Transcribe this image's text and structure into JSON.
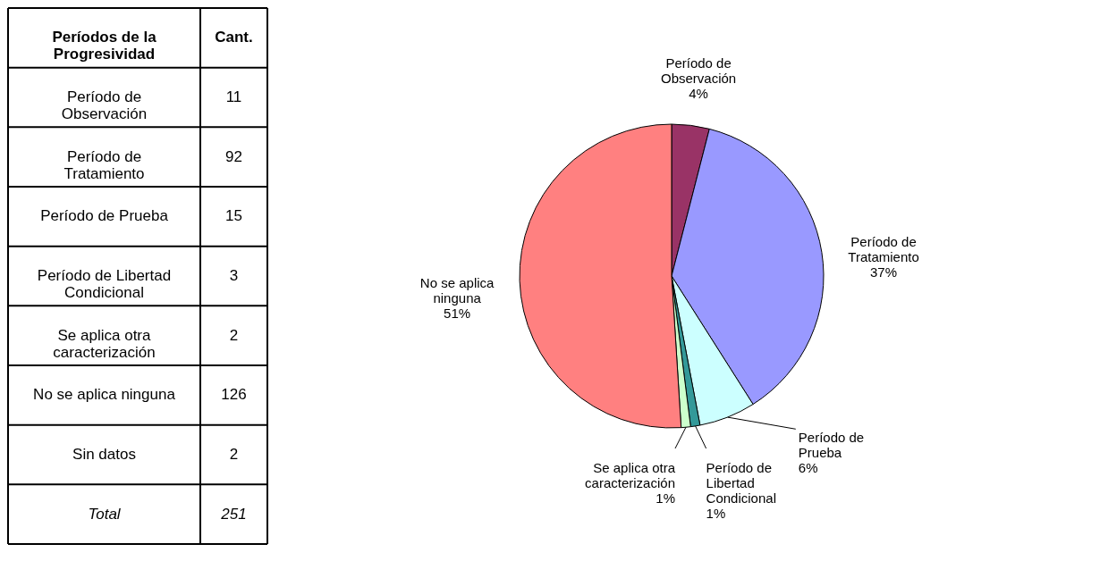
{
  "chart_data": [
    {
      "type": "other",
      "annotations": [
        "Períodos de la Progresividad",
        "Cant.",
        "Período de Observación",
        "11",
        "Período de Tratamiento",
        "92",
        "Período de Prueba",
        "15",
        "Período de Libertad Condicional",
        "3",
        "Se aplica otra caracterización",
        "2",
        "No se aplica ninguna",
        "126",
        "Sin datos",
        "2",
        "Total",
        "251"
      ]
    },
    {
      "type": "pie",
      "categories": [
        "Período de Observación",
        "Período de Tratamiento",
        "Período de Prueba",
        "Período de Libertad Condicional",
        "Se aplica otra caracterización",
        "No se aplica ninguna"
      ],
      "values": [
        4,
        37,
        6,
        1,
        1,
        51
      ],
      "value_labels": [
        "4%",
        "37%",
        "6%",
        "1%",
        "1%",
        "51%"
      ],
      "colors": [
        "#993366",
        "#9999ff",
        "#ccffff",
        "#339999",
        "#ccffcc",
        "#ff8080"
      ]
    }
  ]
}
